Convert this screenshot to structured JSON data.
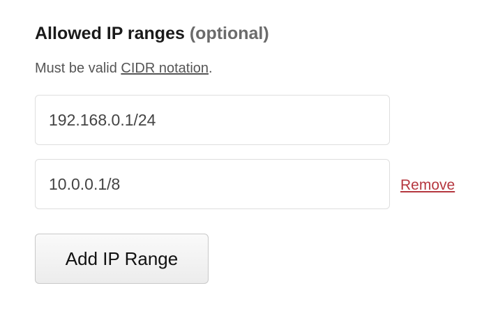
{
  "section": {
    "title": "Allowed IP ranges",
    "optional_label": "(optional)",
    "help_prefix": "Must be valid ",
    "help_link": "CIDR notation",
    "help_suffix": "."
  },
  "ip_ranges": [
    {
      "value": "192.168.0.1/24"
    },
    {
      "value": "10.0.0.1/8",
      "remove_label": "Remove"
    }
  ],
  "add_button_label": "Add IP Range",
  "colors": {
    "remove_link": "#b5373f",
    "text": "#1a1a1a",
    "muted": "#6b6b6b"
  }
}
